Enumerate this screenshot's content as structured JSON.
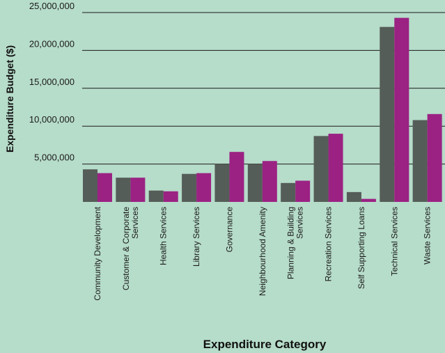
{
  "chart_data": {
    "type": "bar",
    "xlabel": "Expenditure Category",
    "ylabel": "Expenditure Budget ($)",
    "ylim": [
      0,
      25000000
    ],
    "yticks": [
      "5,000,000",
      "10,000,000",
      "15,000,000",
      "20,000,000",
      "25,000,000"
    ],
    "ytick_values": [
      5000000,
      10000000,
      15000000,
      20000000,
      25000000
    ],
    "grid": "horizontal",
    "categories": [
      [
        "Community Development"
      ],
      [
        "Customer & Corporate",
        "Services"
      ],
      [
        "Health Services"
      ],
      [
        "Library Services"
      ],
      [
        "Governance"
      ],
      [
        "Neighbourhood Amenity"
      ],
      [
        "Planning & Building",
        "Services"
      ],
      [
        "Recreation Services"
      ],
      [
        "Self Supporting Loans"
      ],
      [
        "Technical Services"
      ],
      [
        "Waste Services"
      ]
    ],
    "series": [
      {
        "color": "#555d58",
        "values": [
          4300000,
          3200000,
          1500000,
          3700000,
          5000000,
          5000000,
          2500000,
          8700000,
          1300000,
          23100000,
          10800000
        ]
      },
      {
        "color": "#9b2283",
        "values": [
          3800000,
          3200000,
          1400000,
          3800000,
          6600000,
          5400000,
          2800000,
          9000000,
          400000,
          24300000,
          11600000
        ]
      }
    ],
    "colors": {
      "background": "#b6dcca",
      "grid": "#1a1a1a"
    }
  }
}
